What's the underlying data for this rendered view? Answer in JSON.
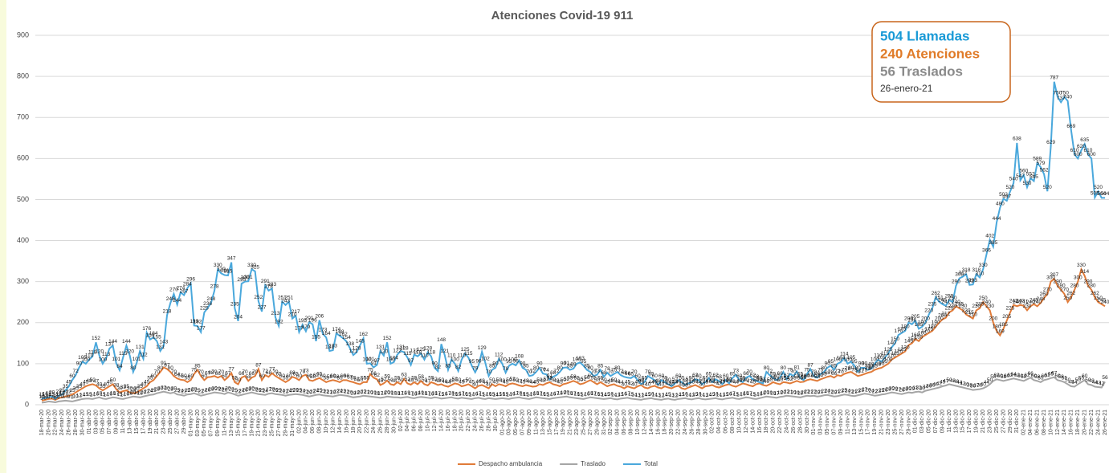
{
  "chart_data": {
    "type": "line",
    "title": "Atenciones Covid-19 911",
    "callout": [
      "504 Llamadas",
      "240 Atenciones",
      "56 Traslados",
      "26-enero-21"
    ],
    "ylim": [
      0,
      900
    ],
    "yticks": [
      0,
      100,
      200,
      300,
      400,
      500,
      600,
      700,
      800,
      900
    ],
    "grid": true,
    "legend": "bottom",
    "categories": [
      "18-mar-20",
      null,
      "20-mar-20",
      null,
      "22-mar-20",
      null,
      "24-mar-20",
      null,
      "26-mar-20",
      null,
      "28-mar-20",
      null,
      "30-mar-20",
      null,
      "01-abr-20",
      null,
      "03-abr-20",
      null,
      "05-abr-20",
      null,
      "07-abr-20",
      null,
      "09-abr-20",
      null,
      "11-abr-20",
      null,
      "13-abr-20",
      null,
      "15-abr-20",
      null,
      "17-abr-20",
      null,
      "19-abr-20",
      null,
      "21-abr-20",
      null,
      "23-abr-20",
      null,
      "25-abr-20",
      null,
      "27-abr-20",
      null,
      "29-abr-20",
      null,
      "01-may-20",
      null,
      "03-may-20",
      null,
      "05-may-20",
      null,
      "07-may-20",
      null,
      "09-may-20",
      null,
      "11-may-20",
      null,
      "13-may-20",
      null,
      "15-may-20",
      null,
      "17-may-20",
      null,
      "19-may-20",
      null,
      "21-may-20",
      null,
      "23-may-20",
      null,
      "25-may-20",
      null,
      "27-may-20",
      null,
      "29-may-20",
      null,
      "31-may-20",
      null,
      "02-jun-20",
      null,
      "04-jun-20",
      null,
      "06-jun-20",
      null,
      "08-jun-20",
      null,
      "10-jun-20",
      null,
      "12-jun-20",
      null,
      "14-jun-20",
      null,
      "16-jun-20",
      null,
      "18-jun-20",
      null,
      "20-jun-20",
      null,
      "22-jun-20",
      null,
      "24-jun-20",
      null,
      "26-jun-20",
      null,
      "28-jun-20",
      null,
      "30-jun-20",
      null,
      "02-jul-20",
      null,
      "04-jul-20",
      null,
      "06-jul-20",
      null,
      "08-jul-20",
      null,
      "10-jul-20",
      null,
      "12-jul-20",
      null,
      "14-jul-20",
      null,
      "16-jul-20",
      null,
      "18-jul-20",
      null,
      "20-jul-20",
      null,
      "22-jul-20",
      null,
      "24-jul-20",
      null,
      "26-jul-20",
      null,
      "28-jul-20",
      null,
      "30-jul-20",
      null,
      "01-ago-20",
      null,
      "03-ago-20",
      null,
      "05-ago-20",
      null,
      "07-ago-20",
      null,
      "09-ago-20",
      null,
      "11-ago-20",
      null,
      "13-ago-20",
      null,
      "15-ago-20",
      null,
      "17-ago-20",
      null,
      "19-ago-20",
      null,
      "21-ago-20",
      null,
      "23-ago-20",
      null,
      "25-ago-20",
      null,
      "27-ago-20",
      null,
      "29-ago-20",
      null,
      "31-ago-20",
      null,
      "02-sep-20",
      null,
      "04-sep-20",
      null,
      "06-sep-20",
      null,
      "08-sep-20",
      null,
      "10-sep-20",
      null,
      "12-sep-20",
      null,
      "14-sep-20",
      null,
      "16-sep-20",
      null,
      "18-sep-20",
      null,
      "20-sep-20",
      null,
      "22-sep-20",
      null,
      "24-sep-20",
      null,
      "26-sep-20",
      null,
      "28-sep-20",
      null,
      "30-sep-20",
      null,
      "02-oct-20",
      null,
      "04-oct-20",
      null,
      "06-oct-20",
      null,
      "08-oct-20",
      null,
      "10-oct-20",
      null,
      "12-oct-20",
      null,
      "14-oct-20",
      null,
      "16-oct-20",
      null,
      "18-oct-20",
      null,
      "20-oct-20",
      null,
      "22-oct-20",
      null,
      "24-oct-20",
      null,
      "26-oct-20",
      null,
      "28-oct-20",
      null,
      "30-oct-20",
      null,
      "01-nov-20",
      null,
      "03-nov-20",
      null,
      "05-nov-20",
      null,
      "07-nov-20",
      null,
      "09-nov-20",
      null,
      "11-nov-20",
      null,
      "13-nov-20",
      null,
      "15-nov-20",
      null,
      "17-nov-20",
      null,
      "19-nov-20",
      null,
      "21-nov-20",
      null,
      "23-nov-20",
      null,
      "25-nov-20",
      null,
      "27-nov-20",
      null,
      "29-nov-20",
      null,
      "01-dic-20",
      null,
      "03-dic-20",
      null,
      "05-dic-20",
      null,
      "07-dic-20",
      null,
      "09-dic-20",
      null,
      "11-dic-20",
      null,
      "13-dic-20",
      null,
      "15-dic-20",
      null,
      "17-dic-20",
      null,
      "19-dic-20",
      null,
      "21-dic-20",
      null,
      "23-dic-20",
      null,
      "25-dic-20",
      null,
      "27-dic-20",
      null,
      "29-dic-20",
      null,
      "31-dic-20",
      null,
      "02-ene-21",
      null,
      "04-ene-21",
      null,
      "06-ene-21",
      null,
      "08-ene-21",
      null,
      "10-ene-21",
      null,
      "12-ene-21",
      null,
      "14-ene-21",
      null,
      "16-ene-21",
      null,
      "18-ene-21",
      null,
      "20-ene-21",
      null,
      "22-ene-21",
      null,
      "24-ene-21",
      null,
      "26-ene-21"
    ],
    "series": [
      {
        "name": "Despacho ambulancia",
        "color": "#e07b39",
        "values": [
          10,
          12,
          14,
          15,
          12,
          16,
          18,
          20,
          22,
          25,
          30,
          35,
          40,
          45,
          48,
          50,
          47,
          40,
          35,
          40,
          45,
          50,
          38,
          30,
          33,
          35,
          30,
          28,
          30,
          35,
          40,
          45,
          55,
          60,
          70,
          80,
          91,
          87,
          80,
          70,
          64,
          61,
          60,
          55,
          60,
          75,
          85,
          70,
          60,
          67,
          68,
          70,
          66,
          70,
          60,
          67,
          77,
          55,
          50,
          66,
          70,
          58,
          66,
          70,
          87,
          60,
          72,
          68,
          77,
          70,
          65,
          60,
          55,
          60,
          68,
          65,
          60,
          70,
          73,
          60,
          58,
          62,
          65,
          60,
          55,
          58,
          60,
          58,
          55,
          60,
          60,
          57,
          55,
          52,
          50,
          55,
          55,
          75,
          66,
          62,
          48,
          52,
          59,
          50,
          48,
          55,
          50,
          63,
          52,
          49,
          55,
          50,
          58,
          50,
          47,
          55,
          52,
          48,
          50,
          46,
          44,
          48,
          52,
          50,
          45,
          47,
          50,
          45,
          40,
          46,
          48,
          44,
          40,
          50,
          45,
          50,
          48,
          45,
          50,
          52,
          50,
          47,
          45,
          48,
          46,
          44,
          45,
          50,
          48,
          52,
          55,
          50,
          48,
          45,
          50,
          52,
          55,
          58,
          55,
          50,
          52,
          56,
          60,
          55,
          50,
          55,
          50,
          45,
          48,
          50,
          46,
          44,
          40,
          45,
          42,
          40,
          45,
          48,
          42,
          40,
          44,
          46,
          42,
          40,
          45,
          42,
          40,
          44,
          46,
          40,
          38,
          42,
          45,
          48,
          44,
          40,
          45,
          46,
          48,
          44,
          42,
          45,
          48,
          50,
          46,
          44,
          48,
          52,
          50,
          47,
          45,
          50,
          52,
          48,
          46,
          50,
          55,
          52,
          50,
          55,
          54,
          52,
          55,
          58,
          55,
          56,
          60,
          62,
          60,
          58,
          62,
          65,
          68,
          70,
          66,
          72,
          70,
          75,
          78,
          80,
          75,
          70,
          72,
          75,
          78,
          80,
          85,
          88,
          90,
          95,
          100,
          110,
          115,
          120,
          125,
          130,
          145,
          150,
          160,
          155,
          165,
          170,
          175,
          180,
          190,
          200,
          208,
          212,
          225,
          230,
          240,
          235,
          230,
          220,
          215,
          210,
          230,
          235,
          250,
          240,
          230,
          200,
          180,
          169,
          185,
          205,
          225,
          243,
          240,
          243,
          241,
          230,
          240,
          245,
          240,
          248,
          260,
          270,
          300,
          307,
          290,
          280,
          270,
          250,
          262,
          280,
          300,
          330,
          314,
          290,
          280,
          262,
          250,
          245,
          240
        ]
      },
      {
        "name": "Traslado",
        "color": "#a5a5a5",
        "values": [
          5,
          6,
          8,
          7,
          6,
          8,
          9,
          10,
          9,
          8,
          10,
          12,
          14,
          15,
          15,
          14,
          16,
          18,
          15,
          14,
          16,
          18,
          17,
          15,
          14,
          16,
          18,
          20,
          19,
          18,
          20,
          22,
          24,
          25,
          28,
          30,
          32,
          30,
          28,
          30,
          25,
          24,
          22,
          25,
          26,
          28,
          25,
          22,
          24,
          26,
          28,
          30,
          29,
          28,
          26,
          30,
          28,
          25,
          22,
          24,
          26,
          28,
          30,
          28,
          26,
          25,
          24,
          27,
          28,
          26,
          25,
          24,
          22,
          24,
          25,
          26,
          25,
          24,
          22,
          20,
          22,
          24,
          25,
          23,
          22,
          21,
          20,
          22,
          24,
          23,
          22,
          20,
          18,
          19,
          20,
          22,
          21,
          20,
          19,
          18,
          17,
          18,
          20,
          19,
          18,
          18,
          17,
          18,
          19,
          17,
          16,
          18,
          19,
          18,
          17,
          16,
          18,
          17,
          15,
          16,
          17,
          18,
          16,
          15,
          17,
          16,
          15,
          14,
          16,
          17,
          15,
          14,
          16,
          15,
          14,
          15,
          16,
          15,
          14,
          16,
          17,
          18,
          16,
          15,
          14,
          16,
          18,
          17,
          16,
          15,
          14,
          16,
          17,
          18,
          19,
          20,
          18,
          17,
          16,
          15,
          14,
          16,
          18,
          17,
          16,
          15,
          14,
          15,
          16,
          14,
          13,
          15,
          16,
          17,
          15,
          14,
          13,
          12,
          14,
          15,
          16,
          14,
          13,
          12,
          14,
          15,
          13,
          12,
          14,
          15,
          16,
          14,
          13,
          15,
          16,
          14,
          13,
          14,
          15,
          16,
          14,
          13,
          15,
          16,
          17,
          15,
          14,
          16,
          18,
          17,
          15,
          14,
          16,
          18,
          20,
          19,
          18,
          17,
          19,
          20,
          22,
          21,
          20,
          19,
          18,
          20,
          22,
          21,
          22,
          20,
          21,
          23,
          24,
          22,
          20,
          21,
          23,
          25,
          24,
          22,
          21,
          23,
          25,
          27,
          26,
          24,
          22,
          23,
          25,
          26,
          28,
          30,
          29,
          27,
          26,
          28,
          30,
          29,
          31,
          32,
          30,
          34,
          36,
          38,
          40,
          42,
          45,
          47,
          50,
          48,
          46,
          44,
          42,
          40,
          38,
          36,
          37,
          38,
          40,
          44,
          50,
          58,
          62,
          60,
          58,
          60,
          62,
          64,
          62,
          60,
          58,
          62,
          66,
          60,
          58,
          55,
          60,
          62,
          65,
          67,
          60,
          58,
          55,
          50,
          45,
          44,
          50,
          55,
          60,
          50,
          48,
          44,
          43,
          42,
          56
        ]
      },
      {
        "name": "Total",
        "color": "#4aa8dc",
        "values": [
          15,
          16,
          18,
          20,
          14,
          22,
          25,
          35,
          45,
          60,
          72,
          90,
          105,
          100,
          110,
          118,
          152,
          120,
          100,
          113,
          137,
          144,
          101,
          84,
          115,
          144,
          120,
          80,
          101,
          131,
          112,
          176,
          159,
          164,
          155,
          131,
          143,
          218,
          248,
          270,
          244,
          274,
          267,
          284,
          296,
          193,
          192,
          177,
          225,
          236,
          248,
          278,
          330,
          320,
          316,
          315,
          347,
          235,
          204,
          295,
          300,
          301,
          330,
          325,
          252,
          227,
          291,
          278,
          283,
          213,
          192,
          251,
          243,
          251,
          210,
          217,
          177,
          195,
          179,
          201,
          196,
          155,
          206,
          173,
          164,
          131,
          133,
          174,
          168,
          162,
          154,
          138,
          121,
          128,
          145,
          162,
          100,
          101,
          91,
          97,
          131,
          120,
          152,
          100,
          104,
          122,
          131,
          128,
          115,
          97,
          122,
          118,
          125,
          110,
          128,
          118,
          90,
          82,
          148,
          121,
          85,
          110,
          100,
          82,
          110,
          125,
          115,
          95,
          79,
          96,
          129,
          102,
          70,
          85,
          90,
          112,
          100,
          78,
          95,
          100,
          96,
          108,
          90,
          85,
          70,
          72,
          80,
          90,
          76,
          74,
          61,
          68,
          72,
          80,
          90,
          91,
          85,
          88,
          100,
          103,
          95,
          85,
          80,
          70,
          73,
          85,
          68,
          78,
          70,
          75,
          80,
          72,
          68,
          66,
          65,
          70,
          60,
          50,
          55,
          70,
          65,
          60,
          48,
          60,
          55,
          50,
          45,
          52,
          60,
          55,
          48,
          52,
          55,
          62,
          60,
          50,
          55,
          65,
          55,
          62,
          58,
          50,
          60,
          52,
          65,
          73,
          60,
          55,
          66,
          70,
          62,
          58,
          55,
          52,
          80,
          72,
          65,
          60,
          66,
          80,
          62,
          75,
          70,
          81,
          65,
          60,
          75,
          87,
          70,
          66,
          75,
          80,
          90,
          95,
          85,
          100,
          104,
          114,
          100,
          105,
          95,
          80,
          90,
          90,
          85,
          88,
          100,
          110,
          105,
          115,
          125,
          140,
          150,
          170,
          175,
          180,
          200,
          196,
          205,
          185,
          190,
          200,
          220,
          235,
          262,
          251,
          245,
          241,
          255,
          250,
          290,
          308,
          312,
          318,
          292,
          293,
          318,
          310,
          330,
          366,
          402,
          385,
          444,
          480,
          502,
          497,
          520,
          540,
          638,
          547,
          560,
          530,
          552,
          545,
          589,
          579,
          562,
          520,
          629,
          787,
          750,
          737,
          750,
          740,
          669,
          610,
          600,
          620,
          635,
          610,
          600,
          505,
          520,
          504,
          504
        ]
      }
    ]
  }
}
